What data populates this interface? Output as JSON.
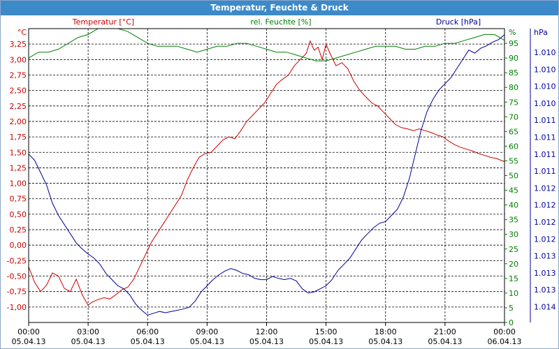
{
  "window": {
    "title": "Temperatur, Feuchte & Druck"
  },
  "colors": {
    "temperature": "#cc0000",
    "humidity": "#008000",
    "pressure": "#000099",
    "titlebar": "#3c8ac9",
    "grid": "#000000"
  },
  "chart_data": {
    "type": "line",
    "title": "Temperatur, Feuchte & Druck",
    "grid": true,
    "x_ticks": [
      {
        "time": "00:00",
        "date": "05.04.13"
      },
      {
        "time": "03:00",
        "date": "05.04.13"
      },
      {
        "time": "06:00",
        "date": "05.04.13"
      },
      {
        "time": "09:00",
        "date": "05.04.13"
      },
      {
        "time": "12:00",
        "date": "05.04.13"
      },
      {
        "time": "15:00",
        "date": "05.04.13"
      },
      {
        "time": "18:00",
        "date": "05.04.13"
      },
      {
        "time": "21:00",
        "date": "05.04.13"
      },
      {
        "time": "00:00",
        "date": "06.04.13"
      }
    ],
    "axes": {
      "temperature": {
        "label": "Temperatur [°C]",
        "unit": "°C",
        "ylim": [
          -1.25,
          3.5
        ],
        "tick_labels": [
          "-1,00",
          "-0,75",
          "-0,50",
          "-0,25",
          "0,00",
          "0,25",
          "0,50",
          "0,75",
          "1,00",
          "1,25",
          "1,50",
          "1,75",
          "2,00",
          "2,25",
          "2,50",
          "2,75",
          "3,00",
          "3,25"
        ]
      },
      "humidity": {
        "label": "rel. Feuchte [%]",
        "unit": "%",
        "ylim": [
          0,
          100
        ],
        "tick_labels": [
          "0",
          "5",
          "10",
          "15",
          "20",
          "25",
          "30",
          "35",
          "40",
          "45",
          "50",
          "55",
          "60",
          "65",
          "70",
          "75",
          "80",
          "85",
          "90",
          "95"
        ]
      },
      "pressure": {
        "label": "Druck [hPa]",
        "unit": "hPa",
        "ylim": [
          1009.5,
          1014.3
        ],
        "tick_labels": [
          "1.010",
          "1.010",
          "1.010",
          "1.010",
          "1.011",
          "1.011",
          "1.011",
          "1.011",
          "1.012",
          "1.012",
          "1.012",
          "1.012",
          "1.013",
          "1.013",
          "1.013",
          "1.014"
        ]
      }
    },
    "series": [
      {
        "name": "Temperatur [°C]",
        "axis": "temperature",
        "x_hours": [
          0,
          0.3,
          0.6,
          0.9,
          1.2,
          1.5,
          1.8,
          2.1,
          2.4,
          2.7,
          3.0,
          3.2,
          3.5,
          3.8,
          4.1,
          4.4,
          4.7,
          5.0,
          5.3,
          5.6,
          5.9,
          6.2,
          6.5,
          6.8,
          7.1,
          7.4,
          7.7,
          8.0,
          8.3,
          8.6,
          8.9,
          9.2,
          9.5,
          9.8,
          10.1,
          10.4,
          10.7,
          11.0,
          11.3,
          11.6,
          11.9,
          12.2,
          12.5,
          12.8,
          13.1,
          13.4,
          13.7,
          14.0,
          14.2,
          14.4,
          14.6,
          14.8,
          15.0,
          15.2,
          15.5,
          15.8,
          16.1,
          16.4,
          16.7,
          17.0,
          17.3,
          17.6,
          17.9,
          18.2,
          18.5,
          18.8,
          19.1,
          19.4,
          19.7,
          20.0,
          20.3,
          20.6,
          20.9,
          21.2,
          21.5,
          21.8,
          22.1,
          22.4,
          22.7,
          23.0,
          23.3,
          23.6,
          24.0
        ],
        "values": [
          -0.35,
          -0.6,
          -0.75,
          -0.65,
          -0.45,
          -0.5,
          -0.7,
          -0.75,
          -0.55,
          -0.8,
          -0.97,
          -0.92,
          -0.88,
          -0.85,
          -0.87,
          -0.8,
          -0.72,
          -0.68,
          -0.55,
          -0.35,
          -0.15,
          0.05,
          0.2,
          0.35,
          0.5,
          0.65,
          0.8,
          1.05,
          1.25,
          1.42,
          1.48,
          1.5,
          1.6,
          1.7,
          1.75,
          1.72,
          1.85,
          2.0,
          2.1,
          2.2,
          2.3,
          2.45,
          2.6,
          2.68,
          2.75,
          2.9,
          3.0,
          3.1,
          3.3,
          3.15,
          3.2,
          3.0,
          3.25,
          3.1,
          2.9,
          2.95,
          2.85,
          2.65,
          2.5,
          2.4,
          2.3,
          2.25,
          2.15,
          2.05,
          1.95,
          1.9,
          1.88,
          1.85,
          1.88,
          1.85,
          1.82,
          1.78,
          1.75,
          1.68,
          1.62,
          1.58,
          1.55,
          1.52,
          1.48,
          1.45,
          1.42,
          1.4,
          1.35
        ]
      },
      {
        "name": "rel. Feuchte [%]",
        "axis": "humidity",
        "x_hours": [
          0,
          0.5,
          1.0,
          1.5,
          2.0,
          2.5,
          3.0,
          3.5,
          4.0,
          4.5,
          5.0,
          5.5,
          6.0,
          6.5,
          7.0,
          7.5,
          8.0,
          8.5,
          9.0,
          9.5,
          10.0,
          10.5,
          11.0,
          11.5,
          12.0,
          12.5,
          13.0,
          13.5,
          14.0,
          14.5,
          15.0,
          15.5,
          16.0,
          16.5,
          17.0,
          17.5,
          18.0,
          18.5,
          19.0,
          19.5,
          20.0,
          20.5,
          21.0,
          21.5,
          22.0,
          22.5,
          23.0,
          23.5,
          24.0
        ],
        "values": [
          90,
          92,
          92,
          93,
          95,
          97,
          98,
          100,
          100,
          100,
          99,
          97,
          95,
          94,
          94,
          94,
          93,
          92,
          93,
          94,
          94,
          95,
          95,
          94,
          93,
          92,
          92,
          91,
          90,
          89,
          89,
          90,
          91,
          92,
          93,
          94,
          94,
          94,
          93,
          93,
          94,
          94,
          95,
          95,
          96,
          97,
          98,
          98,
          96
        ]
      },
      {
        "name": "Druck [hPa]",
        "axis": "pressure",
        "x_hours": [
          0,
          0.3,
          0.6,
          0.9,
          1.2,
          1.5,
          1.8,
          2.1,
          2.4,
          2.7,
          3.0,
          3.3,
          3.6,
          3.9,
          4.2,
          4.5,
          4.8,
          5.1,
          5.4,
          5.7,
          6.0,
          6.3,
          6.6,
          6.9,
          7.2,
          7.5,
          7.8,
          8.1,
          8.4,
          8.7,
          9.0,
          9.3,
          9.6,
          9.9,
          10.2,
          10.5,
          10.8,
          11.1,
          11.4,
          11.7,
          12.0,
          12.3,
          12.6,
          12.9,
          13.2,
          13.5,
          13.8,
          14.1,
          14.4,
          14.7,
          15.0,
          15.3,
          15.6,
          15.9,
          16.2,
          16.5,
          16.8,
          17.1,
          17.4,
          17.7,
          18.0,
          18.3,
          18.6,
          18.9,
          19.2,
          19.5,
          19.8,
          20.1,
          20.4,
          20.7,
          21.0,
          21.3,
          21.6,
          21.9,
          22.2,
          22.5,
          22.8,
          23.1,
          23.4,
          23.7,
          24.0
        ],
        "values": [
          1012.25,
          1012.15,
          1011.95,
          1011.75,
          1011.45,
          1011.25,
          1011.1,
          1010.95,
          1010.8,
          1010.7,
          1010.62,
          1010.55,
          1010.45,
          1010.3,
          1010.2,
          1010.1,
          1010.05,
          1009.95,
          1009.8,
          1009.7,
          1009.62,
          1009.65,
          1009.68,
          1009.66,
          1009.68,
          1009.7,
          1009.72,
          1009.75,
          1009.85,
          1010.0,
          1010.1,
          1010.2,
          1010.28,
          1010.34,
          1010.38,
          1010.35,
          1010.3,
          1010.28,
          1010.22,
          1010.2,
          1010.2,
          1010.25,
          1010.22,
          1010.2,
          1010.22,
          1010.18,
          1010.05,
          1009.98,
          1010.0,
          1010.05,
          1010.1,
          1010.2,
          1010.35,
          1010.45,
          1010.55,
          1010.7,
          1010.85,
          1010.95,
          1011.05,
          1011.12,
          1011.15,
          1011.25,
          1011.35,
          1011.55,
          1011.85,
          1012.25,
          1012.65,
          1012.95,
          1013.15,
          1013.3,
          1013.4,
          1013.5,
          1013.65,
          1013.8,
          1013.95,
          1013.9,
          1013.98,
          1014.02,
          1014.08,
          1014.12,
          1014.2
        ]
      }
    ]
  }
}
